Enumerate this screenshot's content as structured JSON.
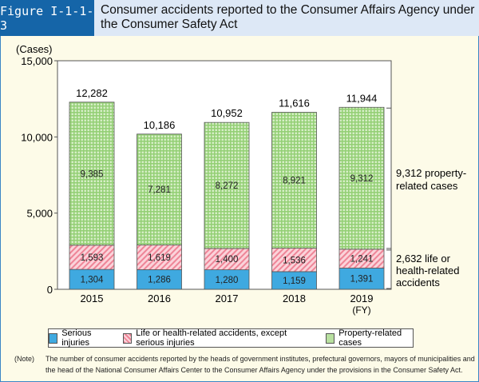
{
  "header": {
    "figure_number": "Figure I-1-1-3",
    "title": "Consumer accidents reported to the Consumer Affairs Agency under the Consumer Safety Act"
  },
  "chart_data": {
    "type": "bar",
    "stacked": true,
    "ylabel": "(Cases)",
    "ylim": [
      0,
      15000
    ],
    "yticks": [
      "0",
      "5,000",
      "10,000",
      "15,000"
    ],
    "categories": [
      "2015",
      "2016",
      "2017",
      "2018",
      "2019"
    ],
    "x_unit": "(FY)",
    "series": [
      {
        "name": "Serious injuries",
        "color": "#3fa9e0",
        "values": [
          1304,
          1286,
          1280,
          1159,
          1391
        ],
        "labels": [
          "1,304",
          "1,286",
          "1,280",
          "1,159",
          "1,391"
        ]
      },
      {
        "name": "Life or health-related accidents, except serious injuries",
        "color": "#f4a0ae",
        "values": [
          1593,
          1619,
          1400,
          1536,
          1241
        ],
        "labels": [
          "1,593",
          "1,619",
          "1,400",
          "1,536",
          "1,241"
        ]
      },
      {
        "name": "Property-related cases",
        "color": "#a8d88a",
        "values": [
          9385,
          7281,
          8272,
          8921,
          9312
        ],
        "labels": [
          "9,385",
          "7,281",
          "8,272",
          "8,921",
          "9,312"
        ]
      }
    ],
    "totals": [
      "12,282",
      "10,186",
      "10,952",
      "11,616",
      "11,944"
    ],
    "annotations": [
      {
        "line1": "9,312 property-",
        "line2": "related cases"
      },
      {
        "line1": "2,632 life or",
        "line2": "health-related",
        "line3": "accidents"
      }
    ],
    "grid": false,
    "legend_position": "bottom"
  },
  "note": {
    "label": "(Note)",
    "text_line1": "The number of consumer accidents reported by the heads of government institutes, prefectural governors, mayors of municipalities and",
    "text_line2": "the head of the National Consumer Affairs Center to the Consumer Affairs Agency under the provisions in the Consumer Safety Act."
  }
}
